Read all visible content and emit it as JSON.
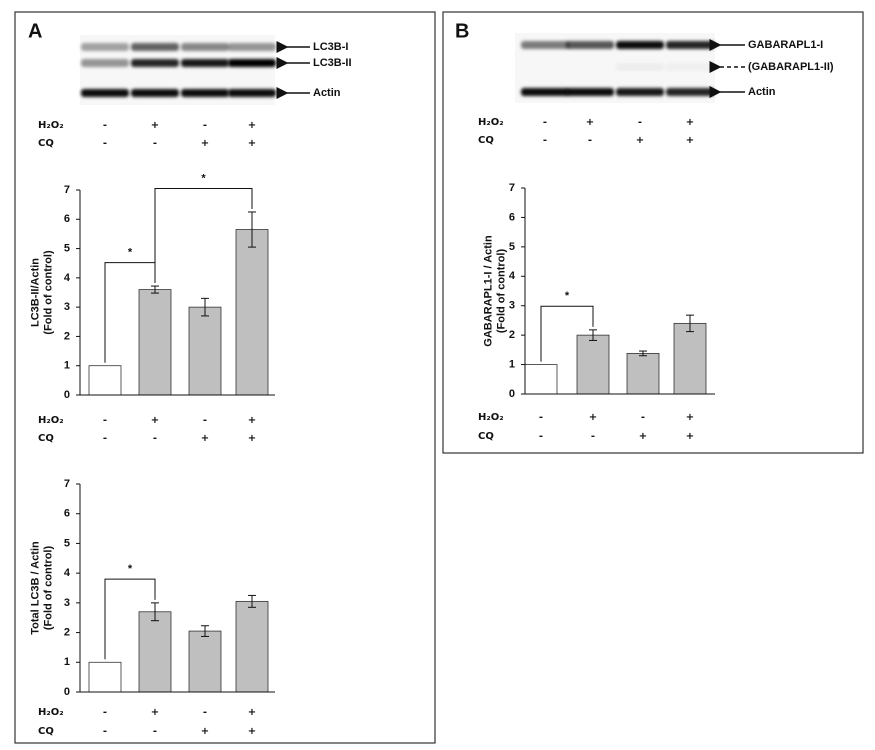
{
  "figure": {
    "panels": [
      {
        "label": "A",
        "blot": {
          "bands": [
            {
              "label": "LC3B-I",
              "arrow": "solid"
            },
            {
              "label": "LC3B-II",
              "arrow": "solid"
            },
            {
              "label": "Actin",
              "arrow": "solid"
            }
          ],
          "conditions": [
            {
              "name": "H₂O₂",
              "signs": [
                "-",
                "+",
                "-",
                "+"
              ]
            },
            {
              "name": "CQ",
              "signs": [
                "-",
                "-",
                "+",
                "+"
              ]
            }
          ]
        }
      },
      {
        "label": "B",
        "blot": {
          "bands": [
            {
              "label": "GABARAPL1-I",
              "arrow": "solid"
            },
            {
              "label": "(GABARAPL1-II)",
              "arrow": "dashed"
            },
            {
              "label": "Actin",
              "arrow": "solid"
            }
          ],
          "conditions": [
            {
              "name": "H₂O₂",
              "signs": [
                "-",
                "+",
                "-",
                "+"
              ]
            },
            {
              "name": "CQ",
              "signs": [
                "-",
                "-",
                "+",
                "+"
              ]
            }
          ]
        }
      }
    ]
  },
  "chart_data": [
    {
      "type": "bar",
      "y_label": [
        "LC3B-II/Actin",
        "(Fold of control)"
      ],
      "values": [
        1,
        3.6,
        3.0,
        5.65
      ],
      "errors": [
        0,
        0.12,
        0.3,
        0.6
      ],
      "colors": [
        "#ffffff",
        "#bfbfbf",
        "#bfbfbf",
        "#bfbfbf"
      ],
      "ylim": [
        0,
        7
      ],
      "yticks": [
        0,
        1,
        2,
        3,
        4,
        5,
        6,
        7
      ],
      "conditions": [
        {
          "name": "H₂O₂",
          "signs": [
            "-",
            "+",
            "-",
            "+"
          ]
        },
        {
          "name": "CQ",
          "signs": [
            "-",
            "-",
            "+",
            "+"
          ]
        }
      ],
      "significance": [
        {
          "label": "*",
          "between": [
            0,
            1
          ]
        },
        {
          "label": "*",
          "between": [
            1,
            3
          ]
        }
      ]
    },
    {
      "type": "bar",
      "y_label": [
        "Total LC3B / Actin",
        "(Fold of control)"
      ],
      "values": [
        1,
        2.7,
        2.05,
        3.05
      ],
      "errors": [
        0,
        0.3,
        0.18,
        0.2
      ],
      "colors": [
        "#ffffff",
        "#bfbfbf",
        "#bfbfbf",
        "#bfbfbf"
      ],
      "ylim": [
        0,
        7
      ],
      "yticks": [
        0,
        1,
        2,
        3,
        4,
        5,
        6,
        7
      ],
      "conditions": [
        {
          "name": "H₂O₂",
          "signs": [
            "-",
            "+",
            "-",
            "+"
          ]
        },
        {
          "name": "CQ",
          "signs": [
            "-",
            "-",
            "+",
            "+"
          ]
        }
      ],
      "significance": [
        {
          "label": "*",
          "between": [
            0,
            1
          ]
        }
      ]
    },
    {
      "type": "bar",
      "y_label": [
        "GABARAPL1-I / Actin",
        "(Fold of control)"
      ],
      "values": [
        1,
        2.0,
        1.38,
        2.4
      ],
      "errors": [
        0,
        0.18,
        0.08,
        0.28
      ],
      "colors": [
        "#ffffff",
        "#bfbfbf",
        "#bfbfbf",
        "#bfbfbf"
      ],
      "ylim": [
        0,
        7
      ],
      "yticks": [
        0,
        1,
        2,
        3,
        4,
        5,
        6,
        7
      ],
      "conditions": [
        {
          "name": "H₂O₂",
          "signs": [
            "-",
            "+",
            "-",
            "+"
          ]
        },
        {
          "name": "CQ",
          "signs": [
            "-",
            "-",
            "+",
            "+"
          ]
        }
      ],
      "significance": [
        {
          "label": "*",
          "between": [
            0,
            1
          ]
        }
      ]
    }
  ]
}
